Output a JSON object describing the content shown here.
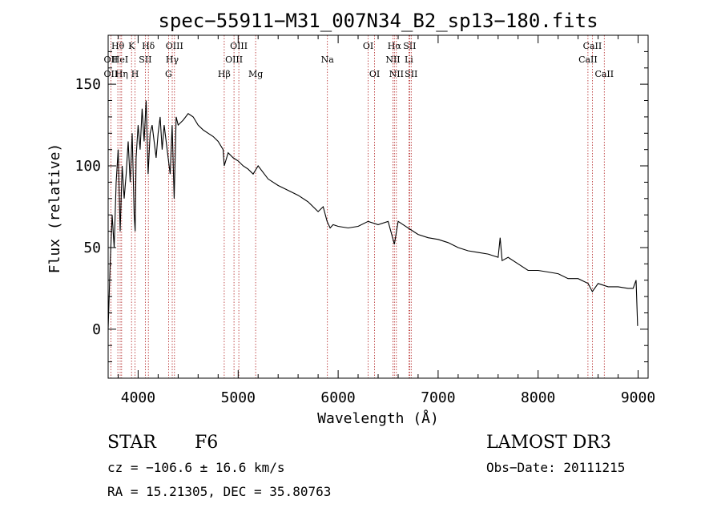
{
  "chart_data": {
    "type": "line",
    "title": "spec−55911−M31_007N34_B2_sp13−180.fits",
    "xlabel": "Wavelength (Å)",
    "ylabel": "Flux (relative)",
    "xlim": [
      3700,
      9100
    ],
    "ylim": [
      -30,
      180
    ],
    "xticks": [
      4000,
      5000,
      6000,
      7000,
      8000,
      9000
    ],
    "yticks": [
      0,
      50,
      100,
      150
    ],
    "series": [
      {
        "name": "spectrum",
        "x": [
          3700,
          3720,
          3740,
          3760,
          3780,
          3800,
          3820,
          3840,
          3860,
          3880,
          3900,
          3920,
          3940,
          3960,
          3970,
          3980,
          4000,
          4020,
          4040,
          4060,
          4080,
          4100,
          4120,
          4140,
          4160,
          4180,
          4200,
          4220,
          4240,
          4260,
          4280,
          4300,
          4320,
          4340,
          4360,
          4380,
          4400,
          4450,
          4500,
          4550,
          4600,
          4650,
          4700,
          4750,
          4800,
          4850,
          4861,
          4900,
          4950,
          5000,
          5050,
          5100,
          5150,
          5200,
          5300,
          5400,
          5500,
          5600,
          5700,
          5800,
          5850,
          5890,
          5920,
          5950,
          6000,
          6100,
          6200,
          6300,
          6400,
          6500,
          6563,
          6600,
          6700,
          6800,
          6900,
          7000,
          7100,
          7200,
          7300,
          7400,
          7500,
          7600,
          7620,
          7640,
          7700,
          7800,
          7900,
          8000,
          8100,
          8200,
          8300,
          8400,
          8500,
          8542,
          8600,
          8700,
          8800,
          8900,
          8950,
          8980,
          8995
        ],
        "y": [
          0,
          40,
          70,
          50,
          90,
          110,
          60,
          100,
          80,
          95,
          115,
          90,
          120,
          70,
          60,
          105,
          125,
          110,
          135,
          115,
          140,
          95,
          120,
          125,
          115,
          105,
          120,
          130,
          110,
          125,
          115,
          105,
          95,
          125,
          80,
          130,
          125,
          128,
          132,
          130,
          125,
          122,
          120,
          118,
          115,
          110,
          100,
          108,
          105,
          103,
          100,
          98,
          95,
          100,
          92,
          88,
          85,
          82,
          78,
          72,
          75,
          66,
          62,
          64,
          63,
          62,
          63,
          66,
          64,
          66,
          52,
          66,
          62,
          58,
          56,
          55,
          53,
          50,
          48,
          47,
          46,
          44,
          56,
          42,
          44,
          40,
          36,
          36,
          35,
          34,
          31,
          31,
          28,
          23,
          28,
          26,
          26,
          25,
          25,
          30,
          2
        ]
      }
    ],
    "line_markers": [
      {
        "label": "Hθ",
        "x": 3797,
        "row": 1
      },
      {
        "label": "OII",
        "x": 3727,
        "row": 2
      },
      {
        "label": "OII",
        "x": 3727,
        "row": 3
      },
      {
        "label": "HeI",
        "x": 3820,
        "row": 2
      },
      {
        "label": "Hη",
        "x": 3835,
        "row": 3
      },
      {
        "label": "K",
        "x": 3934,
        "row": 1
      },
      {
        "label": "SII",
        "x": 4072,
        "row": 2
      },
      {
        "label": "H",
        "x": 3969,
        "row": 3
      },
      {
        "label": "Hδ",
        "x": 4102,
        "row": 1
      },
      {
        "label": "OIII",
        "x": 4363,
        "row": 1
      },
      {
        "label": "Hγ",
        "x": 4341,
        "row": 2
      },
      {
        "label": "G",
        "x": 4304,
        "row": 3
      },
      {
        "label": "OIII",
        "x": 5007,
        "row": 1
      },
      {
        "label": "OIII",
        "x": 4959,
        "row": 2
      },
      {
        "label": "Hβ",
        "x": 4861,
        "row": 3
      },
      {
        "label": "Mg",
        "x": 5175,
        "row": 3
      },
      {
        "label": "Na",
        "x": 5893,
        "row": 2
      },
      {
        "label": "OI",
        "x": 6300,
        "row": 1
      },
      {
        "label": "OI",
        "x": 6364,
        "row": 3
      },
      {
        "label": "Hα",
        "x": 6563,
        "row": 1
      },
      {
        "label": "SII",
        "x": 6716,
        "row": 1
      },
      {
        "label": "NII",
        "x": 6548,
        "row": 2
      },
      {
        "label": "Li",
        "x": 6708,
        "row": 2
      },
      {
        "label": "NII",
        "x": 6583,
        "row": 3
      },
      {
        "label": "SII",
        "x": 6731,
        "row": 3
      },
      {
        "label": "CaII",
        "x": 8542,
        "row": 1
      },
      {
        "label": "CaII",
        "x": 8498,
        "row": 2
      },
      {
        "label": "CaII",
        "x": 8662,
        "row": 3
      }
    ]
  },
  "info": {
    "class": "STAR",
    "subclass": "F6",
    "survey": "LAMOST DR3",
    "cz": "cz = −106.6 ± 16.6 km/s",
    "obs_date": "Obs−Date: 20111215",
    "radec": "RA =  15.21305, DEC =  35.80763"
  }
}
